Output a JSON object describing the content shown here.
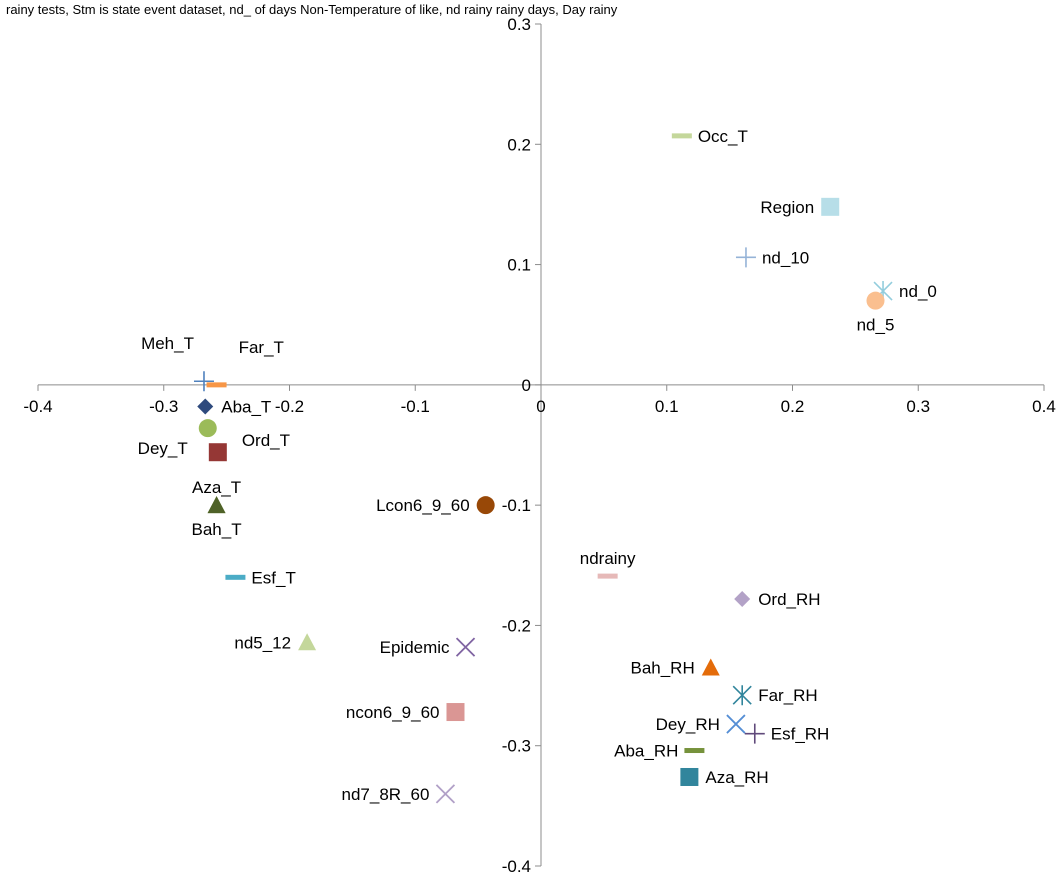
{
  "caption": "rainy tests, Stm    is state event dataset, nd_  of days          Non-Temperature of like, nd rainy rainy days, Day rainy",
  "chart_data": {
    "type": "scatter",
    "title": "",
    "xlabel": "",
    "ylabel": "",
    "xlim": [
      -0.4,
      0.4
    ],
    "ylim": [
      -0.4,
      0.3
    ],
    "grid": false,
    "legend": "none",
    "x_ticks": [
      "-0.4",
      "-0.3",
      "-0.2",
      "-0.1",
      "0",
      "0.1",
      "0.2",
      "0.3",
      "0.4"
    ],
    "y_ticks": [
      "0.3",
      "0.2",
      "0.1",
      "0",
      "-0.1",
      "-0.2",
      "-0.3",
      "-0.4"
    ],
    "points": [
      {
        "label": "Occ_T",
        "x": 0.112,
        "y": 0.207,
        "marker": "dash",
        "color": "#c4d79b",
        "label_pos": "right"
      },
      {
        "label": "Region",
        "x": 0.23,
        "y": 0.148,
        "marker": "square",
        "color": "#b7dee8",
        "label_pos": "left"
      },
      {
        "label": "nd_10",
        "x": 0.163,
        "y": 0.106,
        "marker": "plus",
        "color": "#95b3d7",
        "label_pos": "right"
      },
      {
        "label": "nd_0",
        "x": 0.272,
        "y": 0.078,
        "marker": "star",
        "color": "#93cddd",
        "label_pos": "right"
      },
      {
        "label": "nd_5",
        "x": 0.266,
        "y": 0.07,
        "marker": "circle",
        "color": "#fabf8f",
        "label_pos": "below"
      },
      {
        "label": "Meh_T",
        "x": -0.268,
        "y": 0.003,
        "marker": "plus",
        "color": "#4f81bd",
        "label_pos": "above-left"
      },
      {
        "label": "Far_T",
        "x": -0.258,
        "y": 0.0,
        "marker": "dash",
        "color": "#f79646",
        "label_pos": "above-right"
      },
      {
        "label": "Aba_T",
        "x": -0.267,
        "y": -0.018,
        "marker": "diamond",
        "color": "#2e4a7d",
        "label_pos": "right"
      },
      {
        "label": "Dey_T",
        "x": -0.265,
        "y": -0.036,
        "marker": "circle",
        "color": "#9bbb59",
        "label_pos": "left-below"
      },
      {
        "label": "Ord_T",
        "x": -0.257,
        "y": -0.056,
        "marker": "square",
        "color": "#953735",
        "label_pos": "right-above"
      },
      {
        "label": "Aza_T",
        "x": -0.258,
        "y": -0.1,
        "marker": "triangle",
        "color": "#77933c",
        "label_pos": "above"
      },
      {
        "label": "Bah_T",
        "x": -0.258,
        "y": -0.1,
        "marker": "triangle",
        "color": "#4f6228",
        "label_pos": "below"
      },
      {
        "label": "Lcon6_9_60",
        "x": -0.044,
        "y": -0.1,
        "marker": "circle",
        "color": "#984807",
        "label_pos": "left"
      },
      {
        "label": "Esf_T",
        "x": -0.243,
        "y": -0.16,
        "marker": "dash",
        "color": "#4bacc6",
        "label_pos": "right"
      },
      {
        "label": "nd5_12",
        "x": -0.186,
        "y": -0.214,
        "marker": "triangle",
        "color": "#c4d79b",
        "label_pos": "left"
      },
      {
        "label": "Epidemic",
        "x": -0.06,
        "y": -0.218,
        "marker": "cross",
        "color": "#8064a2",
        "label_pos": "left"
      },
      {
        "label": "ncon6_9_60",
        "x": -0.068,
        "y": -0.272,
        "marker": "square",
        "color": "#da9694",
        "label_pos": "left"
      },
      {
        "label": "nd7_8R_60",
        "x": -0.076,
        "y": -0.34,
        "marker": "cross",
        "color": "#b1a0c7",
        "label_pos": "left"
      },
      {
        "label": "ndrainy",
        "x": 0.053,
        "y": -0.159,
        "marker": "dash",
        "color": "#e6b9b8",
        "label_pos": "above"
      },
      {
        "label": "Ord_RH",
        "x": 0.16,
        "y": -0.178,
        "marker": "diamond",
        "color": "#b3a2c7",
        "label_pos": "right"
      },
      {
        "label": "Bah_RH",
        "x": 0.135,
        "y": -0.235,
        "marker": "triangle",
        "color": "#e46c0a",
        "label_pos": "left"
      },
      {
        "label": "Far_RH",
        "x": 0.16,
        "y": -0.258,
        "marker": "star",
        "color": "#31859c",
        "label_pos": "right"
      },
      {
        "label": "Dey_RH",
        "x": 0.155,
        "y": -0.282,
        "marker": "cross",
        "color": "#558ed5",
        "label_pos": "left"
      },
      {
        "label": "Esf_RH",
        "x": 0.17,
        "y": -0.29,
        "marker": "plus",
        "color": "#604a7b",
        "label_pos": "right"
      },
      {
        "label": "Aba_RH",
        "x": 0.122,
        "y": -0.304,
        "marker": "dash",
        "color": "#76923c",
        "label_pos": "left"
      },
      {
        "label": "Aza_RH",
        "x": 0.118,
        "y": -0.326,
        "marker": "square",
        "color": "#31859c",
        "label_pos": "right"
      }
    ]
  }
}
